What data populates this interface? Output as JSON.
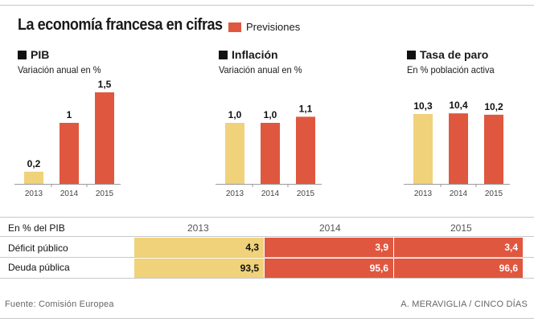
{
  "title": "La economía francesa en cifras",
  "legend": {
    "label": "Previsiones",
    "color": "#e0573f"
  },
  "colors": {
    "actual": "#f0d27a",
    "forecast": "#e0573f"
  },
  "chart_data": [
    {
      "type": "bar",
      "title": "PIB",
      "subtitle": "Variación anual en %",
      "categories": [
        "2013",
        "2014",
        "2015"
      ],
      "values": [
        0.2,
        1,
        1.5
      ],
      "labels": [
        "0,2",
        "1",
        "1,5"
      ],
      "forecast": [
        false,
        true,
        true
      ],
      "ylim": [
        0,
        1.5
      ]
    },
    {
      "type": "bar",
      "title": "Inflación",
      "subtitle": "Variación anual en %",
      "categories": [
        "2013",
        "2014",
        "2015"
      ],
      "values": [
        1.0,
        1.0,
        1.1
      ],
      "labels": [
        "1,0",
        "1,0",
        "1,1"
      ],
      "forecast": [
        false,
        true,
        true
      ],
      "ylim": [
        0,
        1.5
      ]
    },
    {
      "type": "bar",
      "title": "Tasa de paro",
      "subtitle": "En % población activa",
      "categories": [
        "2013",
        "2014",
        "2015"
      ],
      "values": [
        10.3,
        10.4,
        10.2
      ],
      "labels": [
        "10,3",
        "10,4",
        "10,2"
      ],
      "forecast": [
        false,
        true,
        true
      ],
      "ylim": [
        0,
        13.5
      ]
    }
  ],
  "table": {
    "header_label": "En % del PIB",
    "years": [
      "2013",
      "2014",
      "2015"
    ],
    "rows": [
      {
        "label": "Déficit público",
        "values": [
          "4,3",
          "3,9",
          "3,4"
        ]
      },
      {
        "label": "Deuda pública",
        "values": [
          "93,5",
          "95,6",
          "96,6"
        ]
      }
    ]
  },
  "footer": {
    "source": "Fuente: Comisión Europea",
    "credit": "A. MERAVIGLIA / CINCO DÍAS"
  }
}
